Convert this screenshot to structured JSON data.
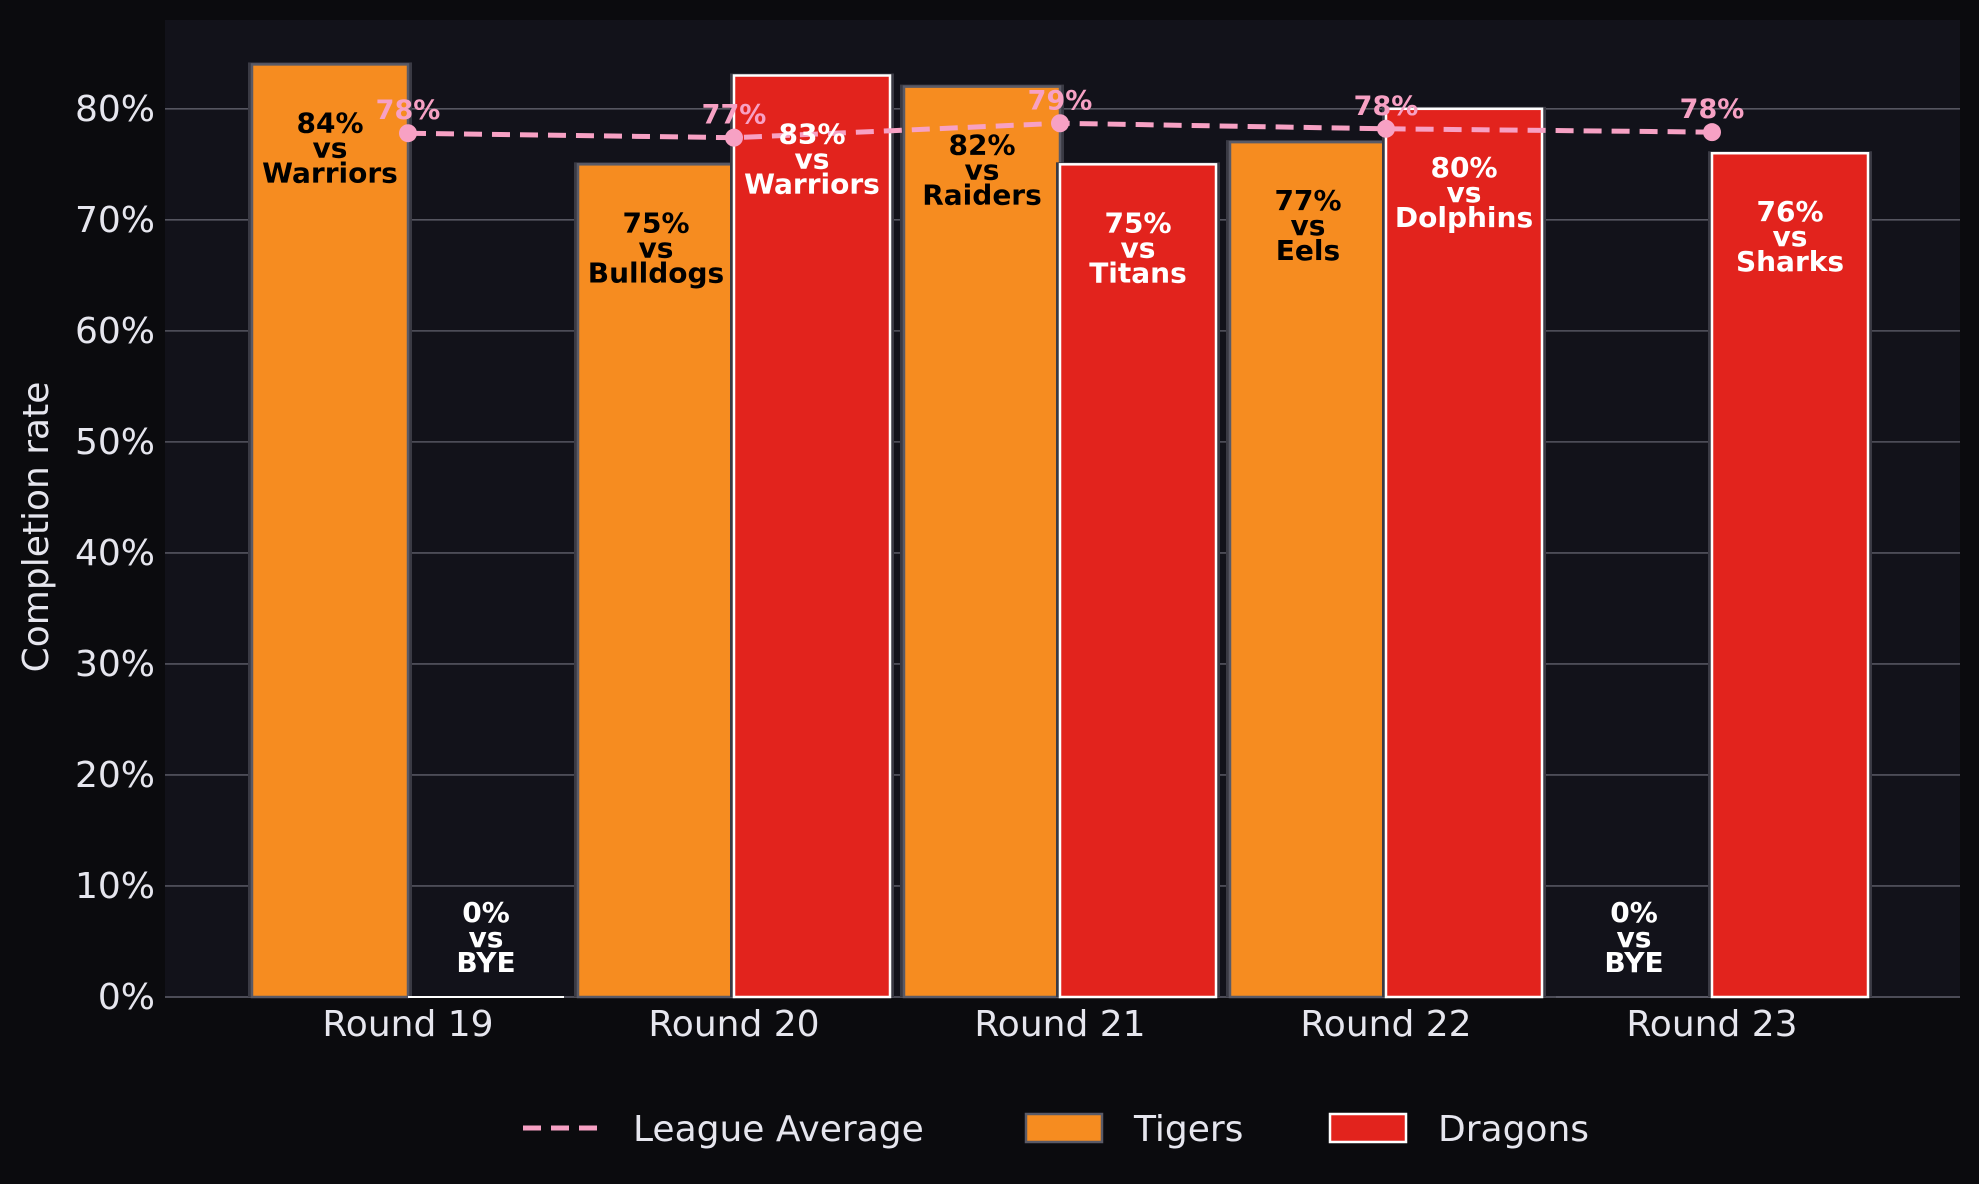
{
  "chart_data": {
    "type": "bar",
    "ylabel": "Completion rate",
    "xlabel": "",
    "ylim": [
      0,
      88
    ],
    "yticks": [
      0,
      10,
      20,
      30,
      40,
      50,
      60,
      70,
      80
    ],
    "ytick_labels": [
      "0%",
      "10%",
      "20%",
      "30%",
      "40%",
      "50%",
      "60%",
      "70%",
      "80%"
    ],
    "grid": "y",
    "legend_position": "bottom-center",
    "categories": [
      "Round 19",
      "Round 20",
      "Round 21",
      "Round 22",
      "Round 23"
    ],
    "series": [
      {
        "name": "Tigers",
        "color": "#f68c20",
        "label_color": "#000000",
        "values": [
          84,
          75,
          82,
          77,
          0
        ],
        "opponents": [
          "Warriors",
          "Bulldogs",
          "Raiders",
          "Eels",
          "BYE"
        ],
        "labels": [
          [
            "84%",
            "vs",
            "Warriors"
          ],
          [
            "75%",
            "vs",
            "Bulldogs"
          ],
          [
            "82%",
            "vs",
            "Raiders"
          ],
          [
            "77%",
            "vs",
            "Eels"
          ],
          [
            "0%",
            "vs",
            "BYE"
          ]
        ]
      },
      {
        "name": "Dragons",
        "color": "#e2231d",
        "label_color": "#ffffff",
        "values": [
          0,
          83,
          75,
          80,
          76
        ],
        "opponents": [
          "BYE",
          "Warriors",
          "Titans",
          "Dolphins",
          "Sharks"
        ],
        "labels": [
          [
            "0%",
            "vs",
            "BYE"
          ],
          [
            "83%",
            "vs",
            "Warriors"
          ],
          [
            "75%",
            "vs",
            "Titans"
          ],
          [
            "80%",
            "vs",
            "Dolphins"
          ],
          [
            "76%",
            "vs",
            "Sharks"
          ]
        ]
      }
    ],
    "league_average": {
      "name": "League Average",
      "color": "#f7a1c4",
      "values": [
        77.8,
        77.4,
        78.7,
        78.2,
        77.9
      ],
      "labels": [
        "78%",
        "77%",
        "79%",
        "78%",
        "78%"
      ]
    },
    "legend": [
      "League Average",
      "Tigers",
      "Dragons"
    ]
  }
}
